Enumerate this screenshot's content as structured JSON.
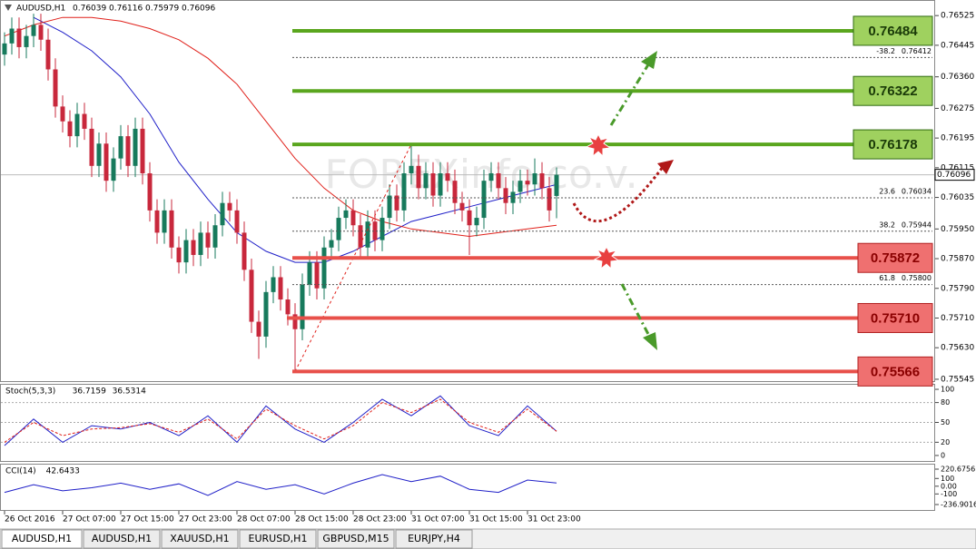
{
  "tabs": [
    "AUDUSD,H1",
    "AUDUSD,H1",
    "XAUUSD,H1",
    "EURUSD,H1",
    "GBPUSD,M15",
    "EURJPY,H4"
  ],
  "watermark": "FOREXinfo.co.v.",
  "chart_data": [
    {
      "type": "candlestick",
      "title": "AUDUSD,H1",
      "up_color": "#177a5c",
      "down_color": "#c8283c",
      "xlim": [
        -0.5,
        128
      ],
      "ylim": [
        0.7554,
        0.76567
      ],
      "xticks": [
        {
          "value": 0,
          "label": "26 Oct 2016"
        },
        {
          "value": 8,
          "label": "27 Oct 07:00"
        },
        {
          "value": 16,
          "label": "27 Oct 15:00"
        },
        {
          "value": 24,
          "label": "27 Oct 23:00"
        },
        {
          "value": 32,
          "label": "28 Oct 07:00"
        },
        {
          "value": 40,
          "label": "28 Oct 15:00"
        },
        {
          "value": 48,
          "label": "28 Oct 23:00"
        },
        {
          "value": 56,
          "label": "31 Oct 07:00"
        },
        {
          "value": 64,
          "label": "31 Oct 15:00"
        },
        {
          "value": 72,
          "label": "31 Oct 23:00"
        }
      ],
      "yticks": [
        0.76525,
        0.76445,
        {
          "value": 0.7636,
          "label": "0.76360"
        },
        0.76275,
        0.76195,
        0.76115,
        0.76035,
        {
          "value": 0.7595,
          "label": "0.75950"
        },
        {
          "value": 0.7587,
          "label": "0.75870"
        },
        {
          "value": 0.7579,
          "label": "0.75790"
        },
        {
          "value": 0.7571,
          "label": "0.75710"
        },
        {
          "value": 0.7563,
          "label": "0.75630"
        },
        0.75545
      ],
      "open": [
        0.7642,
        0.7645,
        0.7649,
        0.7644,
        0.7647,
        0.765,
        0.7646,
        0.7638,
        0.7628,
        0.7624,
        0.762,
        0.7626,
        0.7622,
        0.7612,
        0.7618,
        0.7608,
        0.7614,
        0.762,
        0.7612,
        0.7622,
        0.761,
        0.76,
        0.7594,
        0.76,
        0.759,
        0.7586,
        0.7592,
        0.7588,
        0.7594,
        0.759,
        0.7596,
        0.7602,
        0.76,
        0.7594,
        0.7584,
        0.757,
        0.7566,
        0.7578,
        0.7582,
        0.7576,
        0.7572,
        0.7568,
        0.758,
        0.7586,
        0.7579,
        0.759,
        0.7592,
        0.7598,
        0.76,
        0.7596,
        0.759,
        0.7597,
        0.7592,
        0.7598,
        0.7604,
        0.76,
        0.761,
        0.7612,
        0.7606,
        0.761,
        0.7604,
        0.761,
        0.7608,
        0.7602,
        0.76,
        0.7596,
        0.7598,
        0.7608,
        0.761,
        0.7606,
        0.7602,
        0.7605,
        0.7608,
        0.7607,
        0.761,
        0.7606,
        0.76039
      ],
      "high": [
        0.7648,
        0.7652,
        0.7652,
        0.765,
        0.7653,
        0.7653,
        0.7649,
        0.7641,
        0.7631,
        0.7627,
        0.7629,
        0.7629,
        0.7625,
        0.7621,
        0.7621,
        0.7617,
        0.7623,
        0.7623,
        0.7625,
        0.7625,
        0.7613,
        0.7603,
        0.7603,
        0.7603,
        0.7593,
        0.7595,
        0.7595,
        0.7597,
        0.7597,
        0.7599,
        0.7605,
        0.7605,
        0.7603,
        0.7597,
        0.7587,
        0.7573,
        0.7581,
        0.7585,
        0.7585,
        0.7579,
        0.7575,
        0.7583,
        0.7589,
        0.7589,
        0.7593,
        0.7595,
        0.7601,
        0.7603,
        0.7603,
        0.7599,
        0.76,
        0.76,
        0.7601,
        0.7607,
        0.7607,
        0.7613,
        0.76178,
        0.7615,
        0.7613,
        0.7613,
        0.7613,
        0.7613,
        0.7611,
        0.7605,
        0.7603,
        0.7601,
        0.7611,
        0.7613,
        0.7613,
        0.7609,
        0.7608,
        0.7611,
        0.7611,
        0.7614,
        0.7613,
        0.7609,
        0.76116
      ],
      "low": [
        0.7639,
        0.7642,
        0.7641,
        0.7641,
        0.7644,
        0.7643,
        0.7635,
        0.7625,
        0.7621,
        0.7617,
        0.7617,
        0.7619,
        0.7609,
        0.7609,
        0.7605,
        0.7605,
        0.7611,
        0.7609,
        0.7609,
        0.7607,
        0.7597,
        0.7591,
        0.7591,
        0.7587,
        0.7583,
        0.7583,
        0.7585,
        0.7585,
        0.7587,
        0.7587,
        0.7593,
        0.7597,
        0.7591,
        0.7581,
        0.7567,
        0.756,
        0.7563,
        0.7575,
        0.7573,
        0.7569,
        0.75566,
        0.7565,
        0.7577,
        0.7576,
        0.7576,
        0.7587,
        0.7589,
        0.7595,
        0.7593,
        0.7587,
        0.7587,
        0.7589,
        0.7589,
        0.7595,
        0.7597,
        0.7597,
        0.7607,
        0.7603,
        0.7603,
        0.7601,
        0.7601,
        0.7605,
        0.7599,
        0.7597,
        0.7588,
        0.7593,
        0.7595,
        0.7605,
        0.7603,
        0.7599,
        0.7599,
        0.7602,
        0.7604,
        0.7604,
        0.7603,
        0.7597,
        0.75979
      ],
      "close": [
        0.7645,
        0.7649,
        0.7644,
        0.7647,
        0.765,
        0.7646,
        0.7638,
        0.7628,
        0.7624,
        0.762,
        0.7626,
        0.7622,
        0.7612,
        0.7618,
        0.7608,
        0.7614,
        0.762,
        0.7612,
        0.7622,
        0.761,
        0.76,
        0.7594,
        0.76,
        0.759,
        0.7586,
        0.7592,
        0.7588,
        0.7594,
        0.759,
        0.7596,
        0.7602,
        0.76,
        0.7594,
        0.7584,
        0.757,
        0.7566,
        0.7578,
        0.7582,
        0.7576,
        0.7572,
        0.7568,
        0.758,
        0.7586,
        0.7579,
        0.759,
        0.7592,
        0.7598,
        0.76,
        0.7596,
        0.759,
        0.7597,
        0.7592,
        0.7598,
        0.7604,
        0.76,
        0.761,
        0.7612,
        0.7606,
        0.761,
        0.7604,
        0.761,
        0.7608,
        0.7602,
        0.76,
        0.7596,
        0.7598,
        0.7608,
        0.761,
        0.7606,
        0.7602,
        0.7605,
        0.7608,
        0.7607,
        0.761,
        0.7606,
        0.76,
        0.76096
      ],
      "ma": [
        {
          "color": "#1f1fc8",
          "x": [
            4,
            8,
            12,
            16,
            20,
            24,
            28,
            32,
            36,
            40,
            44,
            48,
            52,
            56,
            60,
            64,
            68,
            72,
            76
          ],
          "values": [
            0.7652,
            0.7648,
            0.7643,
            0.7636,
            0.7626,
            0.7613,
            0.7603,
            0.7594,
            0.7589,
            0.7586,
            0.7586,
            0.7589,
            0.7593,
            0.7597,
            0.7599,
            0.7601,
            0.7603,
            0.7605,
            0.7607
          ]
        },
        {
          "color": "#e0201a",
          "x": [
            0,
            4,
            8,
            12,
            16,
            20,
            24,
            28,
            32,
            36,
            40,
            44,
            48,
            52,
            56,
            60,
            64,
            68,
            72,
            76
          ],
          "values": [
            0.7647,
            0.765,
            0.7652,
            0.7652,
            0.7651,
            0.7649,
            0.7646,
            0.7641,
            0.7634,
            0.7624,
            0.7614,
            0.7606,
            0.76,
            0.7597,
            0.7595,
            0.7594,
            0.7593,
            0.7594,
            0.7595,
            0.7596
          ]
        }
      ],
      "resistance_levels": {
        "color": "#5aa61e",
        "box_color": "#9fd15f",
        "values": [
          0.76484,
          0.76322,
          0.76178
        ],
        "value_labels": [
          "0.76484",
          "0.76322",
          "0.76178"
        ]
      },
      "support_levels": {
        "color": "#e8504a",
        "box_color": "#ef7070",
        "values": [
          0.75872,
          0.7571,
          0.75566
        ],
        "value_labels": [
          "0.75872",
          "0.75710",
          "0.75566"
        ]
      },
      "fib_levels": [
        {
          "ratio": -38.2,
          "price": 0.76412
        },
        {
          "ratio": 23.6,
          "price": 0.76034
        },
        {
          "ratio": 38.2,
          "price": 0.75944
        },
        {
          "ratio": 61.8,
          "price": 0.758,
          "price_label": "0.75800"
        }
      ]
    },
    {
      "type": "line",
      "title": "Stoch(5,3,3)",
      "ylim": [
        -8.3,
        106.9
      ],
      "yticks": [
        100,
        80,
        50,
        20,
        0
      ],
      "x": [
        0,
        4,
        8,
        12,
        16,
        20,
        24,
        28,
        32,
        36,
        40,
        44,
        48,
        52,
        56,
        60,
        64,
        68,
        72,
        76
      ],
      "series": [
        {
          "color": "#1f1fc8",
          "values": [
            15,
            55,
            20,
            45,
            40,
            50,
            30,
            60,
            20,
            75,
            40,
            20,
            50,
            85,
            60,
            90,
            45,
            30,
            75,
            36.7159
          ]
        },
        {
          "color": "#e0201a",
          "dashed": true,
          "values": [
            20,
            50,
            30,
            40,
            42,
            48,
            35,
            55,
            25,
            70,
            45,
            25,
            45,
            80,
            65,
            85,
            50,
            35,
            70,
            36.5314
          ]
        }
      ]
    },
    {
      "type": "line",
      "title": "CCI(14)",
      "ylim": [
        -307.3,
        279.3
      ],
      "yticks": [
        220.6756,
        100,
        {
          "value": 0,
          "label": "0.00"
        },
        -100,
        -236.9016
      ],
      "x": [
        0,
        4,
        8,
        12,
        16,
        20,
        24,
        28,
        32,
        36,
        40,
        44,
        48,
        52,
        56,
        60,
        64,
        68,
        72,
        76
      ],
      "series": [
        {
          "color": "#1f1fc8",
          "values": [
            -80,
            20,
            -60,
            -20,
            40,
            -40,
            30,
            -120,
            60,
            -40,
            20,
            -100,
            40,
            150,
            60,
            130,
            -40,
            -80,
            80,
            42.6433
          ]
        }
      ]
    }
  ]
}
